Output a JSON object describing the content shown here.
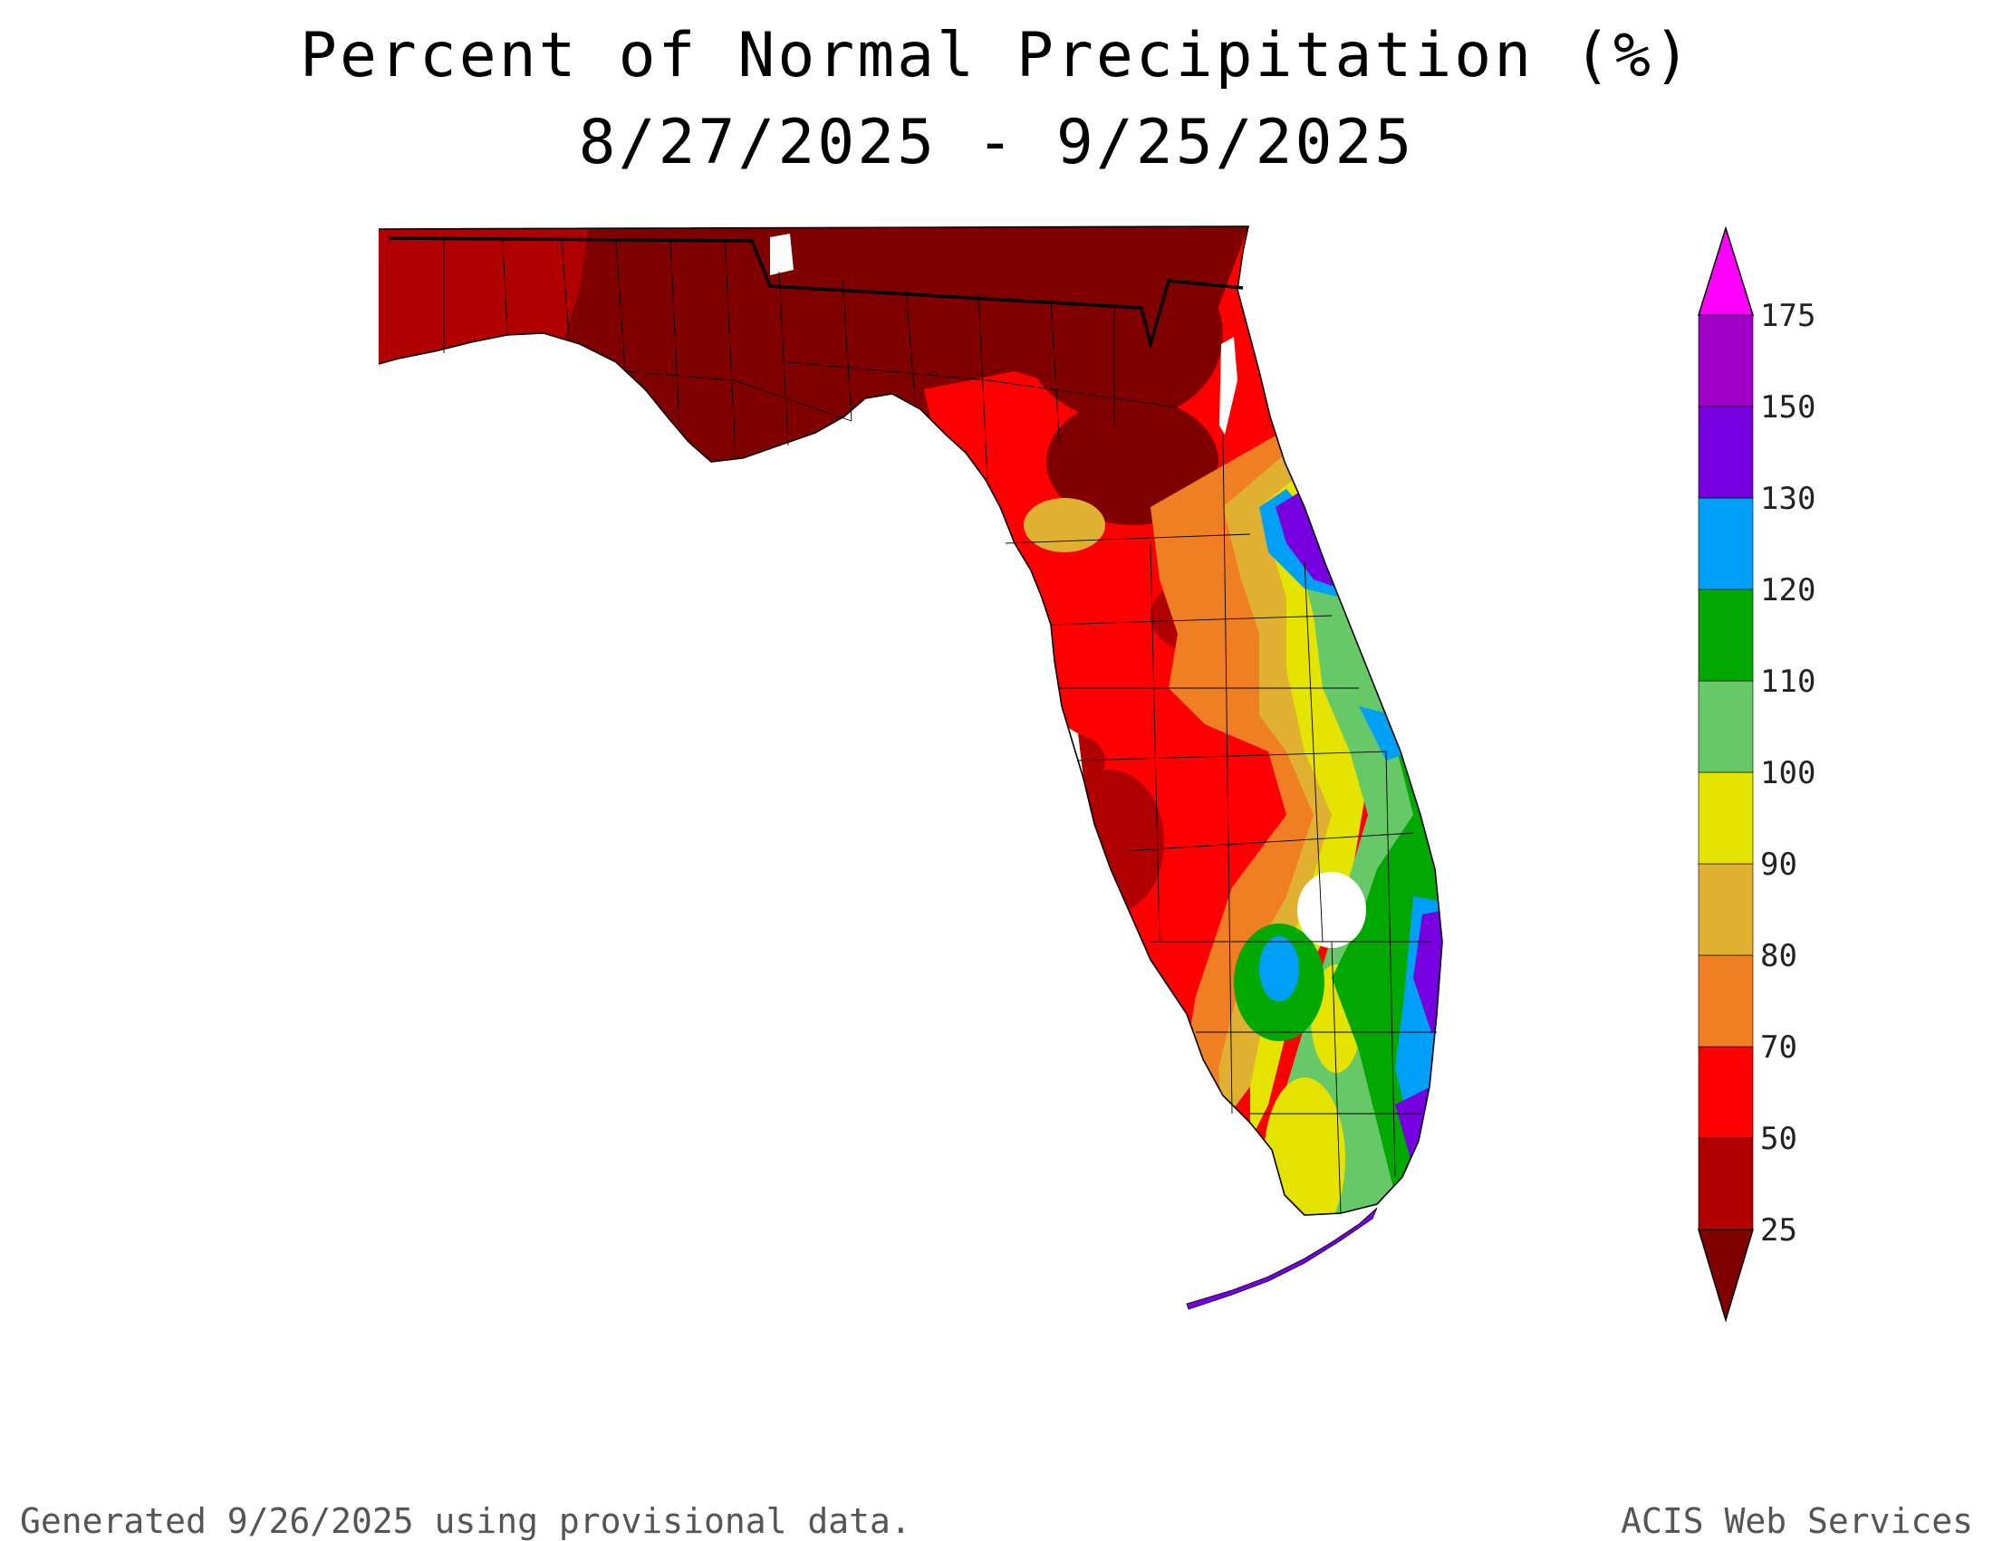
{
  "title": {
    "line1": "Percent of Normal Precipitation (%)",
    "line2": "8/27/2025 - 9/25/2025"
  },
  "footer": {
    "left": "Generated 9/26/2025  using provisional data.",
    "right": "ACIS Web Services"
  },
  "map": {
    "region": "Florida",
    "variable": "percent-of-normal-precipitation"
  },
  "legend": {
    "orientation": "vertical",
    "placement": "right",
    "extend": "both",
    "bins": [
      {
        "label": "25",
        "color": "#b00000"
      },
      {
        "label": "50",
        "color": "#ff0000"
      },
      {
        "label": "70",
        "color": "#ef7f22"
      },
      {
        "label": "80",
        "color": "#e0b030"
      },
      {
        "label": "90",
        "color": "#e4e400"
      },
      {
        "label": "100",
        "color": "#66c866"
      },
      {
        "label": "110",
        "color": "#00a800"
      },
      {
        "label": "120",
        "color": "#00a0f8"
      },
      {
        "label": "130",
        "color": "#7800e0"
      },
      {
        "label": "150",
        "color": "#a000c8"
      },
      {
        "label": "175",
        "color": ""
      }
    ],
    "under_color": "#800000",
    "over_color": "#ff00ff"
  }
}
